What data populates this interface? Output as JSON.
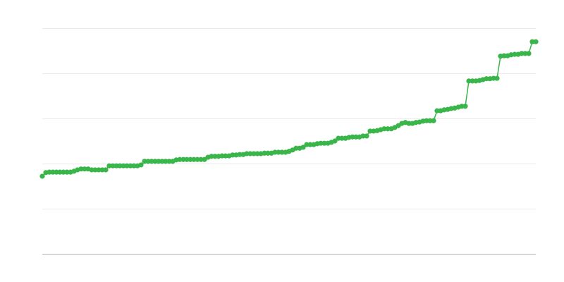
{
  "chart_data": {
    "type": "line",
    "title": "",
    "xlabel": "",
    "ylabel": "",
    "xlim": [
      0,
      140
    ],
    "ylim": [
      0,
      5
    ],
    "yticks": [
      0,
      1,
      2,
      3,
      4,
      5
    ],
    "grid": true,
    "legend": "none",
    "colors": {
      "series": "#39b54a",
      "grid": "#ebebeb",
      "axis": "#b0b0b0"
    },
    "series": [
      {
        "markers": true,
        "values": [
          1.72,
          1.8,
          1.81,
          1.81,
          1.81,
          1.81,
          1.81,
          1.81,
          1.81,
          1.83,
          1.86,
          1.88,
          1.88,
          1.88,
          1.86,
          1.86,
          1.86,
          1.86,
          1.86,
          1.95,
          1.95,
          1.95,
          1.95,
          1.95,
          1.95,
          1.95,
          1.95,
          1.95,
          1.97,
          2.05,
          2.05,
          2.05,
          2.05,
          2.05,
          2.05,
          2.05,
          2.05,
          2.05,
          2.08,
          2.09,
          2.09,
          2.09,
          2.09,
          2.09,
          2.09,
          2.09,
          2.09,
          2.14,
          2.16,
          2.16,
          2.16,
          2.17,
          2.17,
          2.17,
          2.19,
          2.19,
          2.2,
          2.2,
          2.22,
          2.22,
          2.22,
          2.22,
          2.22,
          2.23,
          2.23,
          2.23,
          2.25,
          2.25,
          2.25,
          2.25,
          2.27,
          2.3,
          2.34,
          2.34,
          2.36,
          2.42,
          2.42,
          2.42,
          2.44,
          2.45,
          2.45,
          2.45,
          2.47,
          2.5,
          2.56,
          2.56,
          2.56,
          2.58,
          2.59,
          2.59,
          2.59,
          2.61,
          2.61,
          2.72,
          2.72,
          2.73,
          2.75,
          2.77,
          2.77,
          2.77,
          2.8,
          2.84,
          2.89,
          2.91,
          2.89,
          2.89,
          2.91,
          2.92,
          2.94,
          2.95,
          2.95,
          2.95,
          3.17,
          3.17,
          3.19,
          3.2,
          3.22,
          3.23,
          3.25,
          3.27,
          3.27,
          3.83,
          3.83,
          3.83,
          3.84,
          3.86,
          3.88,
          3.88,
          3.89,
          3.89,
          4.38,
          4.39,
          4.39,
          4.41,
          4.42,
          4.42,
          4.44,
          4.44,
          4.44,
          4.7,
          4.7
        ]
      }
    ]
  }
}
